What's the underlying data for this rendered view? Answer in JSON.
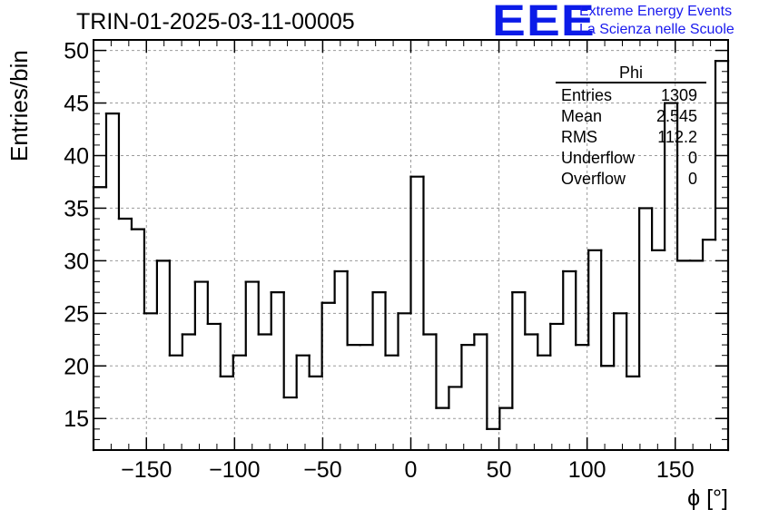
{
  "header": {
    "title": "TRIN-01-2025-03-11-00005",
    "logo_text": "EEE",
    "logo_line1": "Extreme Energy Events",
    "logo_line2": "La Scienza nelle Scuole"
  },
  "colors": {
    "logo": "#0b1be8",
    "line": "#000000",
    "grid": "#9a9a9a"
  },
  "stats": {
    "title": "Phi",
    "rows": [
      {
        "label": "Entries",
        "value": "1309"
      },
      {
        "label": "Mean",
        "value": "2.545"
      },
      {
        "label": "RMS",
        "value": "112.2"
      },
      {
        "label": "Underflow",
        "value": "0"
      },
      {
        "label": "Overflow",
        "value": "0"
      }
    ]
  },
  "chart_data": {
    "type": "histogram",
    "title": "TRIN-01-2025-03-11-00005",
    "xlabel": "ϕ [°]",
    "ylabel": "Entries/bin",
    "xlim": [
      -180,
      180
    ],
    "ylim": [
      12,
      51
    ],
    "grid": true,
    "bin_width": 7.2,
    "xticks": [
      -150,
      -100,
      -50,
      0,
      50,
      100,
      150
    ],
    "xtick_labels": [
      "−150",
      "−100",
      "−50",
      "0",
      "50",
      "100",
      "150"
    ],
    "yticks": [
      15,
      20,
      25,
      30,
      35,
      40,
      45,
      50
    ],
    "ytick_labels": [
      "15",
      "20",
      "25",
      "30",
      "35",
      "40",
      "45",
      "50"
    ],
    "values": [
      37,
      44,
      34,
      33,
      25,
      30,
      21,
      23,
      28,
      24,
      19,
      21,
      28,
      23,
      27,
      17,
      21,
      19,
      26,
      29,
      22,
      22,
      27,
      21,
      25,
      38,
      23,
      16,
      18,
      22,
      23,
      14,
      16,
      27,
      23,
      21,
      24,
      29,
      22,
      31,
      20,
      25,
      19,
      35,
      31,
      45,
      30,
      30,
      32,
      49
    ]
  }
}
